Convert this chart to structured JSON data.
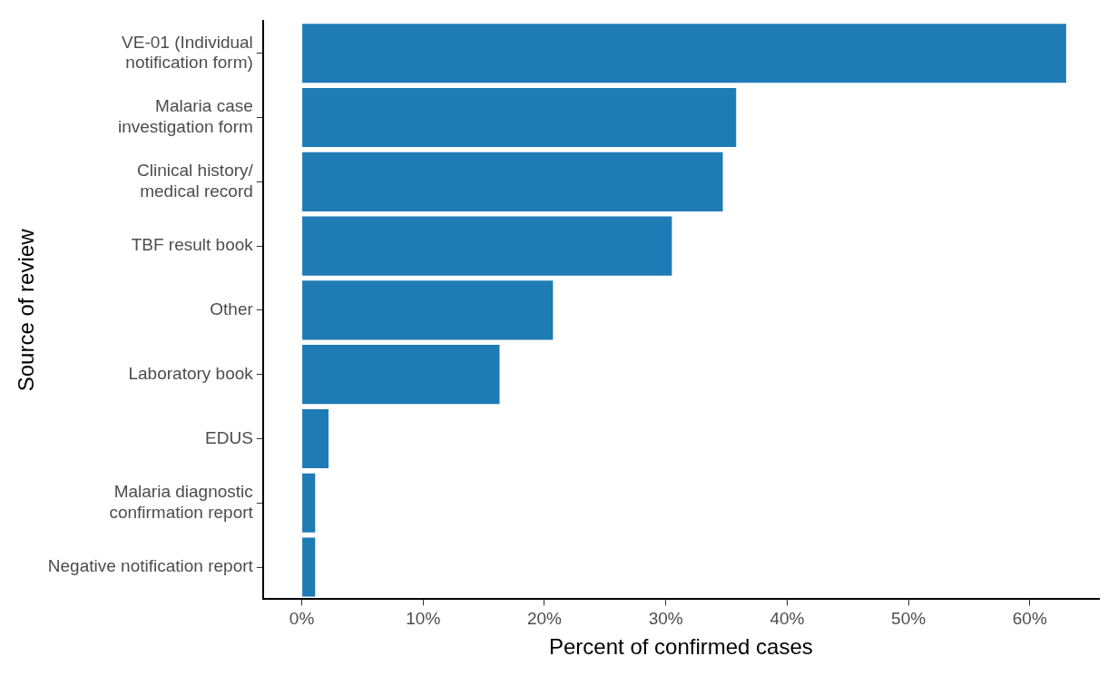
{
  "chart_data": {
    "type": "bar",
    "orientation": "horizontal",
    "xlabel": "Percent of confirmed cases",
    "ylabel": "Source of review",
    "categories": [
      "VE-01 (Individual\nnotification form)",
      "Malaria case\ninvestigation form",
      "Clinical history/\nmedical record",
      "TBF result book",
      "Other",
      "Laboratory book",
      "EDUS",
      "Malaria diagnostic\nconfirmation report",
      "Negative notification report"
    ],
    "values": [
      63.0,
      35.8,
      34.7,
      30.5,
      20.7,
      16.3,
      2.2,
      1.1,
      1.1
    ],
    "color": "#1f7bb4",
    "xlim": [
      -3.2,
      65.7
    ],
    "xticks": [
      {
        "value": 0,
        "label": "0%"
      },
      {
        "value": 10,
        "label": "10%"
      },
      {
        "value": 20,
        "label": "20%"
      },
      {
        "value": 30,
        "label": "30%"
      },
      {
        "value": 40,
        "label": "40%"
      },
      {
        "value": 50,
        "label": "50%"
      },
      {
        "value": 60,
        "label": "60%"
      }
    ],
    "grid": false,
    "legend": false
  }
}
